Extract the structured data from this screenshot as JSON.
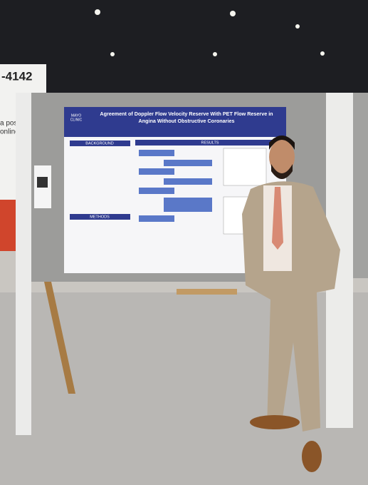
{
  "sign": {
    "number": "-4142",
    "lines": [
      "a poster",
      "online."
    ]
  },
  "poster": {
    "logo": [
      "MAYO",
      "CLINIC"
    ],
    "title": [
      "Agreement of Doppler Flow Velocity Reserve With PET Flow Reserve in",
      "Angina Without Obstructive Coronaries"
    ],
    "sections": [
      "BACKGROUND",
      "METHODS",
      "RESULTS"
    ]
  }
}
